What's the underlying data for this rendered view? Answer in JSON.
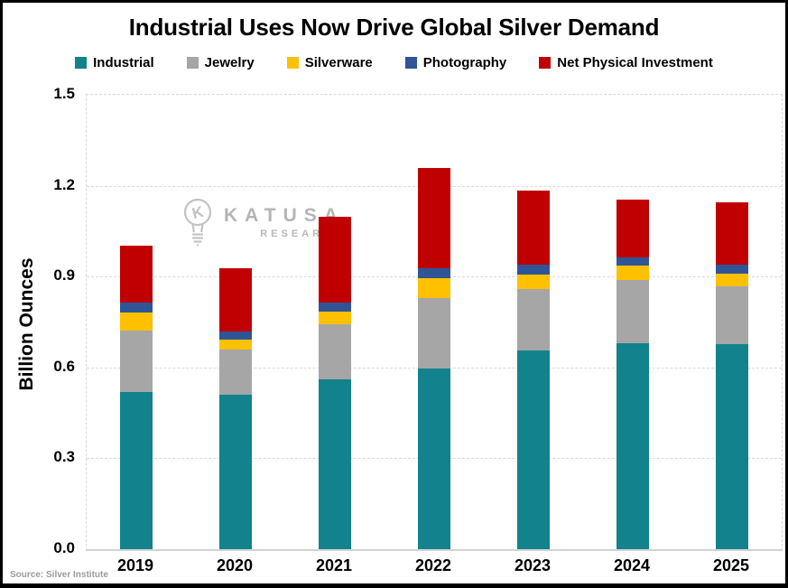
{
  "title": "Industrial Uses Now Drive Global Silver Demand",
  "watermark": {
    "brand": "KATUSA",
    "sub": "RESEARCH"
  },
  "source": "Source: Silver Institute",
  "chart_data": {
    "type": "bar",
    "stacked": true,
    "title": "Industrial Uses Now Drive Global Silver Demand",
    "xlabel": "",
    "ylabel": "Billion Ounces",
    "ylim": [
      0,
      1.5
    ],
    "ytick_step": 0.3,
    "yticks": [
      "0.0",
      "0.3",
      "0.6",
      "0.9",
      "1.2",
      "1.5"
    ],
    "grid": "horizontal-dashed",
    "legend_position": "top",
    "categories": [
      "2019",
      "2020",
      "2021",
      "2022",
      "2023",
      "2024",
      "2025"
    ],
    "series": [
      {
        "name": "Industrial",
        "color": "#12828C",
        "values": [
          0.52,
          0.51,
          0.56,
          0.595,
          0.655,
          0.68,
          0.678
        ]
      },
      {
        "name": "Jewelry",
        "color": "#A6A6A6",
        "values": [
          0.201,
          0.15,
          0.182,
          0.235,
          0.203,
          0.209,
          0.19
        ]
      },
      {
        "name": "Silverware",
        "color": "#FFC000",
        "values": [
          0.061,
          0.032,
          0.041,
          0.066,
          0.05,
          0.047,
          0.042
        ]
      },
      {
        "name": "Photography",
        "color": "#2F5597",
        "values": [
          0.033,
          0.028,
          0.03,
          0.031,
          0.03,
          0.028,
          0.03
        ]
      },
      {
        "name": "Net Physical Investment",
        "color": "#C00000",
        "values": [
          0.187,
          0.208,
          0.284,
          0.333,
          0.245,
          0.19,
          0.205
        ]
      }
    ],
    "totals": [
      1.002,
      0.928,
      1.097,
      1.26,
      1.183,
      1.154,
      1.145
    ]
  }
}
